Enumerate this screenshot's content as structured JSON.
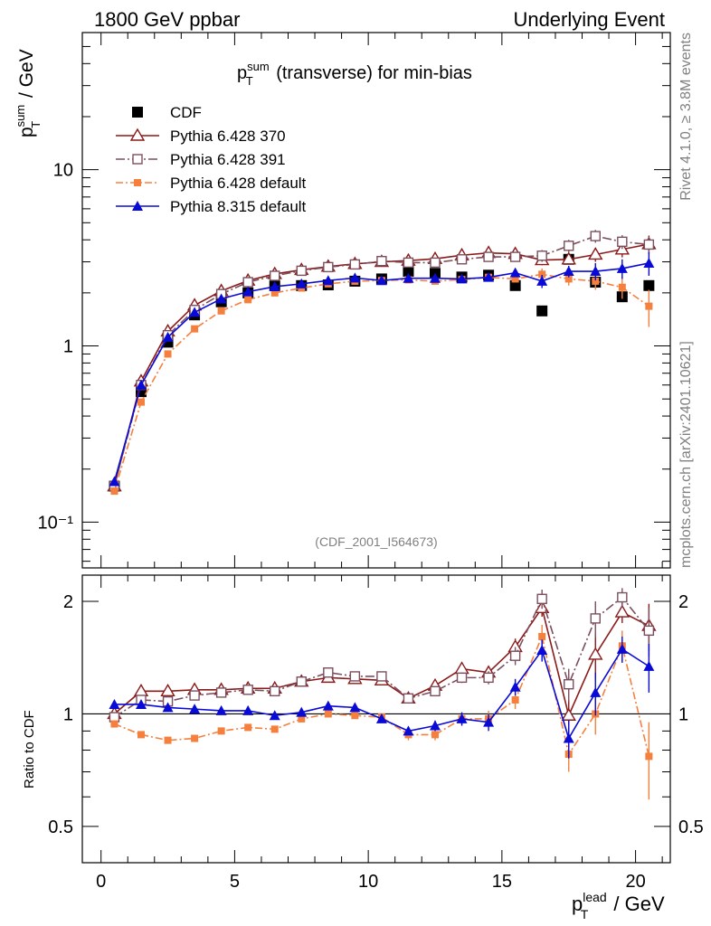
{
  "header": {
    "left": "1800 GeV ppbar",
    "right": "Underlying Event"
  },
  "side_labels": {
    "rivet": "Rivet 4.1.0, ≥ 3.8M events",
    "mcplots": "mcplots.cern.ch [arXiv:2401.10621]"
  },
  "chart_data": {
    "type": "line",
    "title_main": "p",
    "title_sup": "sum",
    "title_sub": "T",
    "title_rest": " (transverse) for min-bias",
    "ylabel": {
      "main": "p",
      "sup": "sum",
      "sub": "T",
      "rest": " / GeV"
    },
    "xlabel": {
      "main": "p",
      "sup": "lead",
      "sub": "T",
      "rest": " / GeV"
    },
    "ratio_ylabel": "Ratio to CDF",
    "watermark": "(CDF_2001_I564673)",
    "xlim": [
      -0.7,
      21.3
    ],
    "ylim": [
      0.055,
      60
    ],
    "ylog": true,
    "ratio_ylim": [
      0.4,
      2.35
    ],
    "x_ticks": [
      "0",
      "5",
      "10",
      "15",
      "20"
    ],
    "y_tick_labels": [
      "10⁻¹",
      "1",
      "10"
    ],
    "ratio_tick_labels": [
      "0.5",
      "1",
      "2"
    ],
    "x": [
      0.5,
      1.5,
      2.5,
      3.5,
      4.5,
      5.5,
      6.5,
      7.5,
      8.5,
      9.5,
      10.5,
      11.5,
      12.5,
      13.5,
      14.5,
      15.5,
      16.5,
      17.5,
      18.5,
      19.5,
      20.5
    ],
    "reference": {
      "name": "CDF",
      "color": "#000000",
      "values": [
        0.16,
        0.55,
        1.05,
        1.5,
        1.78,
        2.0,
        2.2,
        2.2,
        2.22,
        2.33,
        2.4,
        2.65,
        2.58,
        2.46,
        2.52,
        2.2,
        1.58,
        3.1,
        2.3,
        1.9,
        2.2
      ]
    },
    "series": [
      {
        "name": "Pythia 6.428 370",
        "color": "#8b1a1a",
        "marker": "triangle-open",
        "dash": "",
        "values": [
          0.16,
          0.63,
          1.21,
          1.7,
          2.05,
          2.35,
          2.56,
          2.7,
          2.82,
          2.92,
          3.0,
          3.05,
          3.12,
          3.27,
          3.37,
          3.33,
          3.07,
          3.1,
          3.3,
          3.53,
          3.78
        ],
        "errors": [
          0,
          0,
          0,
          0,
          0,
          0,
          0,
          0,
          0,
          0,
          0,
          0,
          0,
          0,
          0,
          0,
          0.2,
          0.2,
          0.3,
          0.35,
          0.45
        ],
        "ratio": [
          1.0,
          1.15,
          1.15,
          1.16,
          1.16,
          1.17,
          1.17,
          1.22,
          1.25,
          1.24,
          1.23,
          1.1,
          1.19,
          1.32,
          1.29,
          1.51,
          1.92,
          0.99,
          1.44,
          1.87,
          1.72
        ],
        "ratio_errors": [
          0,
          0,
          0,
          0,
          0,
          0,
          0,
          0,
          0,
          0,
          0,
          0,
          0,
          0.03,
          0.04,
          0.08,
          0.1,
          0.1,
          0.2,
          0.12,
          0.25
        ]
      },
      {
        "name": "Pythia 6.428 391",
        "color": "#7b4f5e",
        "marker": "square-open",
        "dash": "10,3,2,3",
        "values": [
          0.16,
          0.6,
          1.15,
          1.6,
          1.97,
          2.3,
          2.5,
          2.67,
          2.8,
          2.9,
          3.03,
          2.97,
          2.97,
          3.1,
          3.2,
          3.2,
          3.25,
          3.7,
          4.2,
          3.9,
          3.76
        ],
        "errors": [
          0,
          0,
          0,
          0,
          0,
          0,
          0,
          0,
          0,
          0,
          0,
          0,
          0,
          0,
          0,
          0,
          0.25,
          0.3,
          0.35,
          0.35,
          0.4
        ],
        "ratio": [
          0.98,
          1.09,
          1.08,
          1.12,
          1.14,
          1.16,
          1.15,
          1.22,
          1.29,
          1.26,
          1.26,
          1.1,
          1.15,
          1.25,
          1.25,
          1.43,
          2.03,
          1.2,
          1.8,
          2.05,
          1.67
        ],
        "ratio_errors": [
          0,
          0,
          0,
          0,
          0,
          0,
          0,
          0,
          0,
          0,
          0,
          0,
          0,
          0.04,
          0.05,
          0.08,
          0.12,
          0.12,
          0.2,
          0.12,
          0.25
        ]
      },
      {
        "name": "Pythia 6.428 default",
        "color": "#f5803e",
        "marker": "square-filled",
        "dash": "8,3,2,3",
        "values": [
          0.15,
          0.48,
          0.9,
          1.25,
          1.58,
          1.83,
          2.0,
          2.13,
          2.25,
          2.33,
          2.35,
          2.37,
          2.33,
          2.38,
          2.45,
          2.4,
          2.55,
          2.4,
          2.33,
          2.15,
          1.68
        ],
        "errors": [
          0,
          0,
          0,
          0,
          0,
          0,
          0,
          0,
          0,
          0,
          0,
          0,
          0,
          0,
          0,
          0,
          0.2,
          0.2,
          0.25,
          0.3,
          0.4
        ],
        "ratio": [
          0.94,
          0.88,
          0.85,
          0.86,
          0.9,
          0.92,
          0.91,
          0.97,
          1.0,
          0.99,
          0.98,
          0.88,
          0.88,
          0.97,
          0.97,
          1.09,
          1.61,
          0.78,
          1.0,
          1.52,
          0.77
        ],
        "ratio_errors": [
          0,
          0,
          0,
          0,
          0,
          0,
          0,
          0,
          0,
          0,
          0,
          0.03,
          0.03,
          0.04,
          0.05,
          0.06,
          0.12,
          0.08,
          0.12,
          0.15,
          0.18
        ]
      },
      {
        "name": "Pythia 8.315 default",
        "color": "#0a0ad6",
        "marker": "triangle-filled",
        "dash": "",
        "values": [
          0.17,
          0.6,
          1.12,
          1.55,
          1.85,
          2.03,
          2.17,
          2.25,
          2.35,
          2.43,
          2.35,
          2.42,
          2.42,
          2.4,
          2.45,
          2.6,
          2.33,
          2.65,
          2.65,
          2.75,
          2.95
        ],
        "errors": [
          0,
          0,
          0,
          0,
          0,
          0,
          0,
          0,
          0,
          0,
          0,
          0,
          0,
          0,
          0,
          0,
          0.2,
          0.2,
          0.3,
          0.35,
          0.45
        ],
        "ratio": [
          1.06,
          1.06,
          1.04,
          1.03,
          1.02,
          1.02,
          0.99,
          1.01,
          1.05,
          1.04,
          0.97,
          0.9,
          0.93,
          0.97,
          0.95,
          1.18,
          1.48,
          0.86,
          1.14,
          1.49,
          1.34
        ],
        "ratio_errors": [
          0,
          0,
          0,
          0,
          0,
          0,
          0,
          0,
          0,
          0,
          0,
          0.02,
          0.03,
          0.04,
          0.05,
          0.06,
          0.1,
          0.1,
          0.15,
          0.12,
          0.2
        ]
      }
    ]
  }
}
